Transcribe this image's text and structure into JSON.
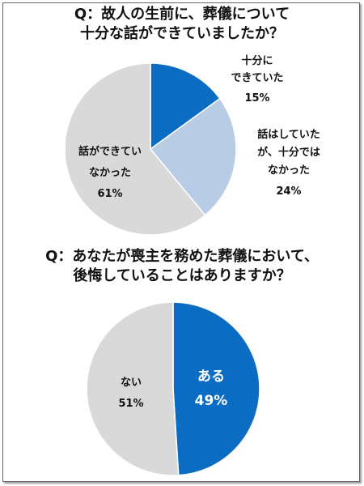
{
  "chart_data": [
    {
      "type": "pie",
      "title_lines": [
        "Q：故人の生前に、葬儀について",
        "十分な話ができていましたか？"
      ],
      "slices": [
        {
          "label_lines": [
            "十分に",
            "できていた"
          ],
          "value": 15,
          "value_label": "15%",
          "color": "#0a6cc2"
        },
        {
          "label_lines": [
            "話はしていた",
            "が、十分では",
            "なかった"
          ],
          "value": 24,
          "value_label": "24%",
          "color": "#b9cce6"
        },
        {
          "label_lines": [
            "話ができてい",
            "なかった"
          ],
          "value": 61,
          "value_label": "61%",
          "color": "#d9d9d9"
        }
      ]
    },
    {
      "type": "pie",
      "title_lines": [
        "Q：あなたが喪主を務めた葬儀において、",
        "後悔していることはありますか？"
      ],
      "slices": [
        {
          "label_lines": [
            "ある"
          ],
          "value": 49,
          "value_label": "49%",
          "color": "#0a6cc2"
        },
        {
          "label_lines": [
            "ない"
          ],
          "value": 51,
          "value_label": "51%",
          "color": "#d9d9d9"
        }
      ]
    }
  ]
}
